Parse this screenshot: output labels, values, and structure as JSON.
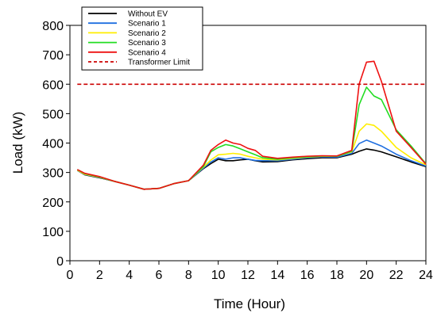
{
  "chart_data": {
    "type": "line",
    "xlabel": "Time (Hour)",
    "ylabel": "Load (kW)",
    "xlim": [
      0,
      24
    ],
    "ylim": [
      0,
      800
    ],
    "xticks": [
      0,
      2,
      4,
      6,
      8,
      10,
      12,
      14,
      16,
      18,
      20,
      22,
      24
    ],
    "yticks": [
      0,
      100,
      200,
      300,
      400,
      500,
      600,
      700,
      800
    ],
    "grid": false,
    "legend_position": "top-left",
    "x": [
      0.5,
      1,
      2,
      3,
      4,
      5,
      6,
      7,
      8,
      9,
      9.5,
      10,
      10.5,
      11,
      11.5,
      12,
      12.5,
      13,
      14,
      15,
      16,
      17,
      18,
      19,
      19.5,
      20,
      20.5,
      21,
      22,
      23,
      24
    ],
    "series": [
      {
        "name": "Without EV",
        "color": "#000000",
        "dash": "solid",
        "values": [
          307,
          292,
          282,
          270,
          257,
          243,
          246,
          262,
          272,
          313,
          330,
          345,
          340,
          340,
          343,
          345,
          340,
          336,
          337,
          343,
          347,
          350,
          350,
          362,
          372,
          380,
          376,
          370,
          353,
          336,
          320
        ]
      },
      {
        "name": "Scenario 1",
        "color": "#1f6fe0",
        "dash": "solid",
        "values": [
          307,
          293,
          283,
          270,
          257,
          243,
          246,
          262,
          272,
          315,
          335,
          350,
          345,
          350,
          350,
          345,
          341,
          340,
          340,
          345,
          350,
          353,
          352,
          365,
          398,
          410,
          400,
          390,
          362,
          340,
          322
        ]
      },
      {
        "name": "Scenario 2",
        "color": "#ffee00",
        "dash": "solid",
        "values": [
          308,
          294,
          284,
          270,
          257,
          243,
          246,
          262,
          272,
          318,
          342,
          360,
          362,
          365,
          362,
          355,
          350,
          345,
          343,
          348,
          352,
          355,
          355,
          370,
          440,
          465,
          460,
          440,
          385,
          350,
          326
        ]
      },
      {
        "name": "Scenario 3",
        "color": "#22dd22",
        "dash": "solid",
        "values": [
          310,
          296,
          285,
          270,
          257,
          243,
          246,
          262,
          272,
          320,
          370,
          385,
          395,
          390,
          380,
          370,
          360,
          350,
          345,
          350,
          353,
          356,
          355,
          372,
          530,
          590,
          560,
          548,
          445,
          390,
          330
        ]
      },
      {
        "name": "Scenario 4",
        "color": "#ee1111",
        "dash": "solid",
        "values": [
          310,
          297,
          286,
          270,
          257,
          243,
          246,
          262,
          272,
          325,
          375,
          395,
          410,
          400,
          395,
          382,
          375,
          355,
          348,
          352,
          355,
          357,
          356,
          375,
          600,
          675,
          678,
          610,
          440,
          385,
          328
        ]
      },
      {
        "name": "Transformer Limit",
        "color": "#cc0000",
        "dash": "dashed",
        "values": [
          600,
          600,
          600,
          600,
          600,
          600,
          600,
          600,
          600,
          600,
          600,
          600,
          600,
          600,
          600,
          600,
          600,
          600,
          600,
          600,
          600,
          600,
          600,
          600,
          600,
          600,
          600,
          600,
          600,
          600,
          600
        ]
      }
    ]
  }
}
